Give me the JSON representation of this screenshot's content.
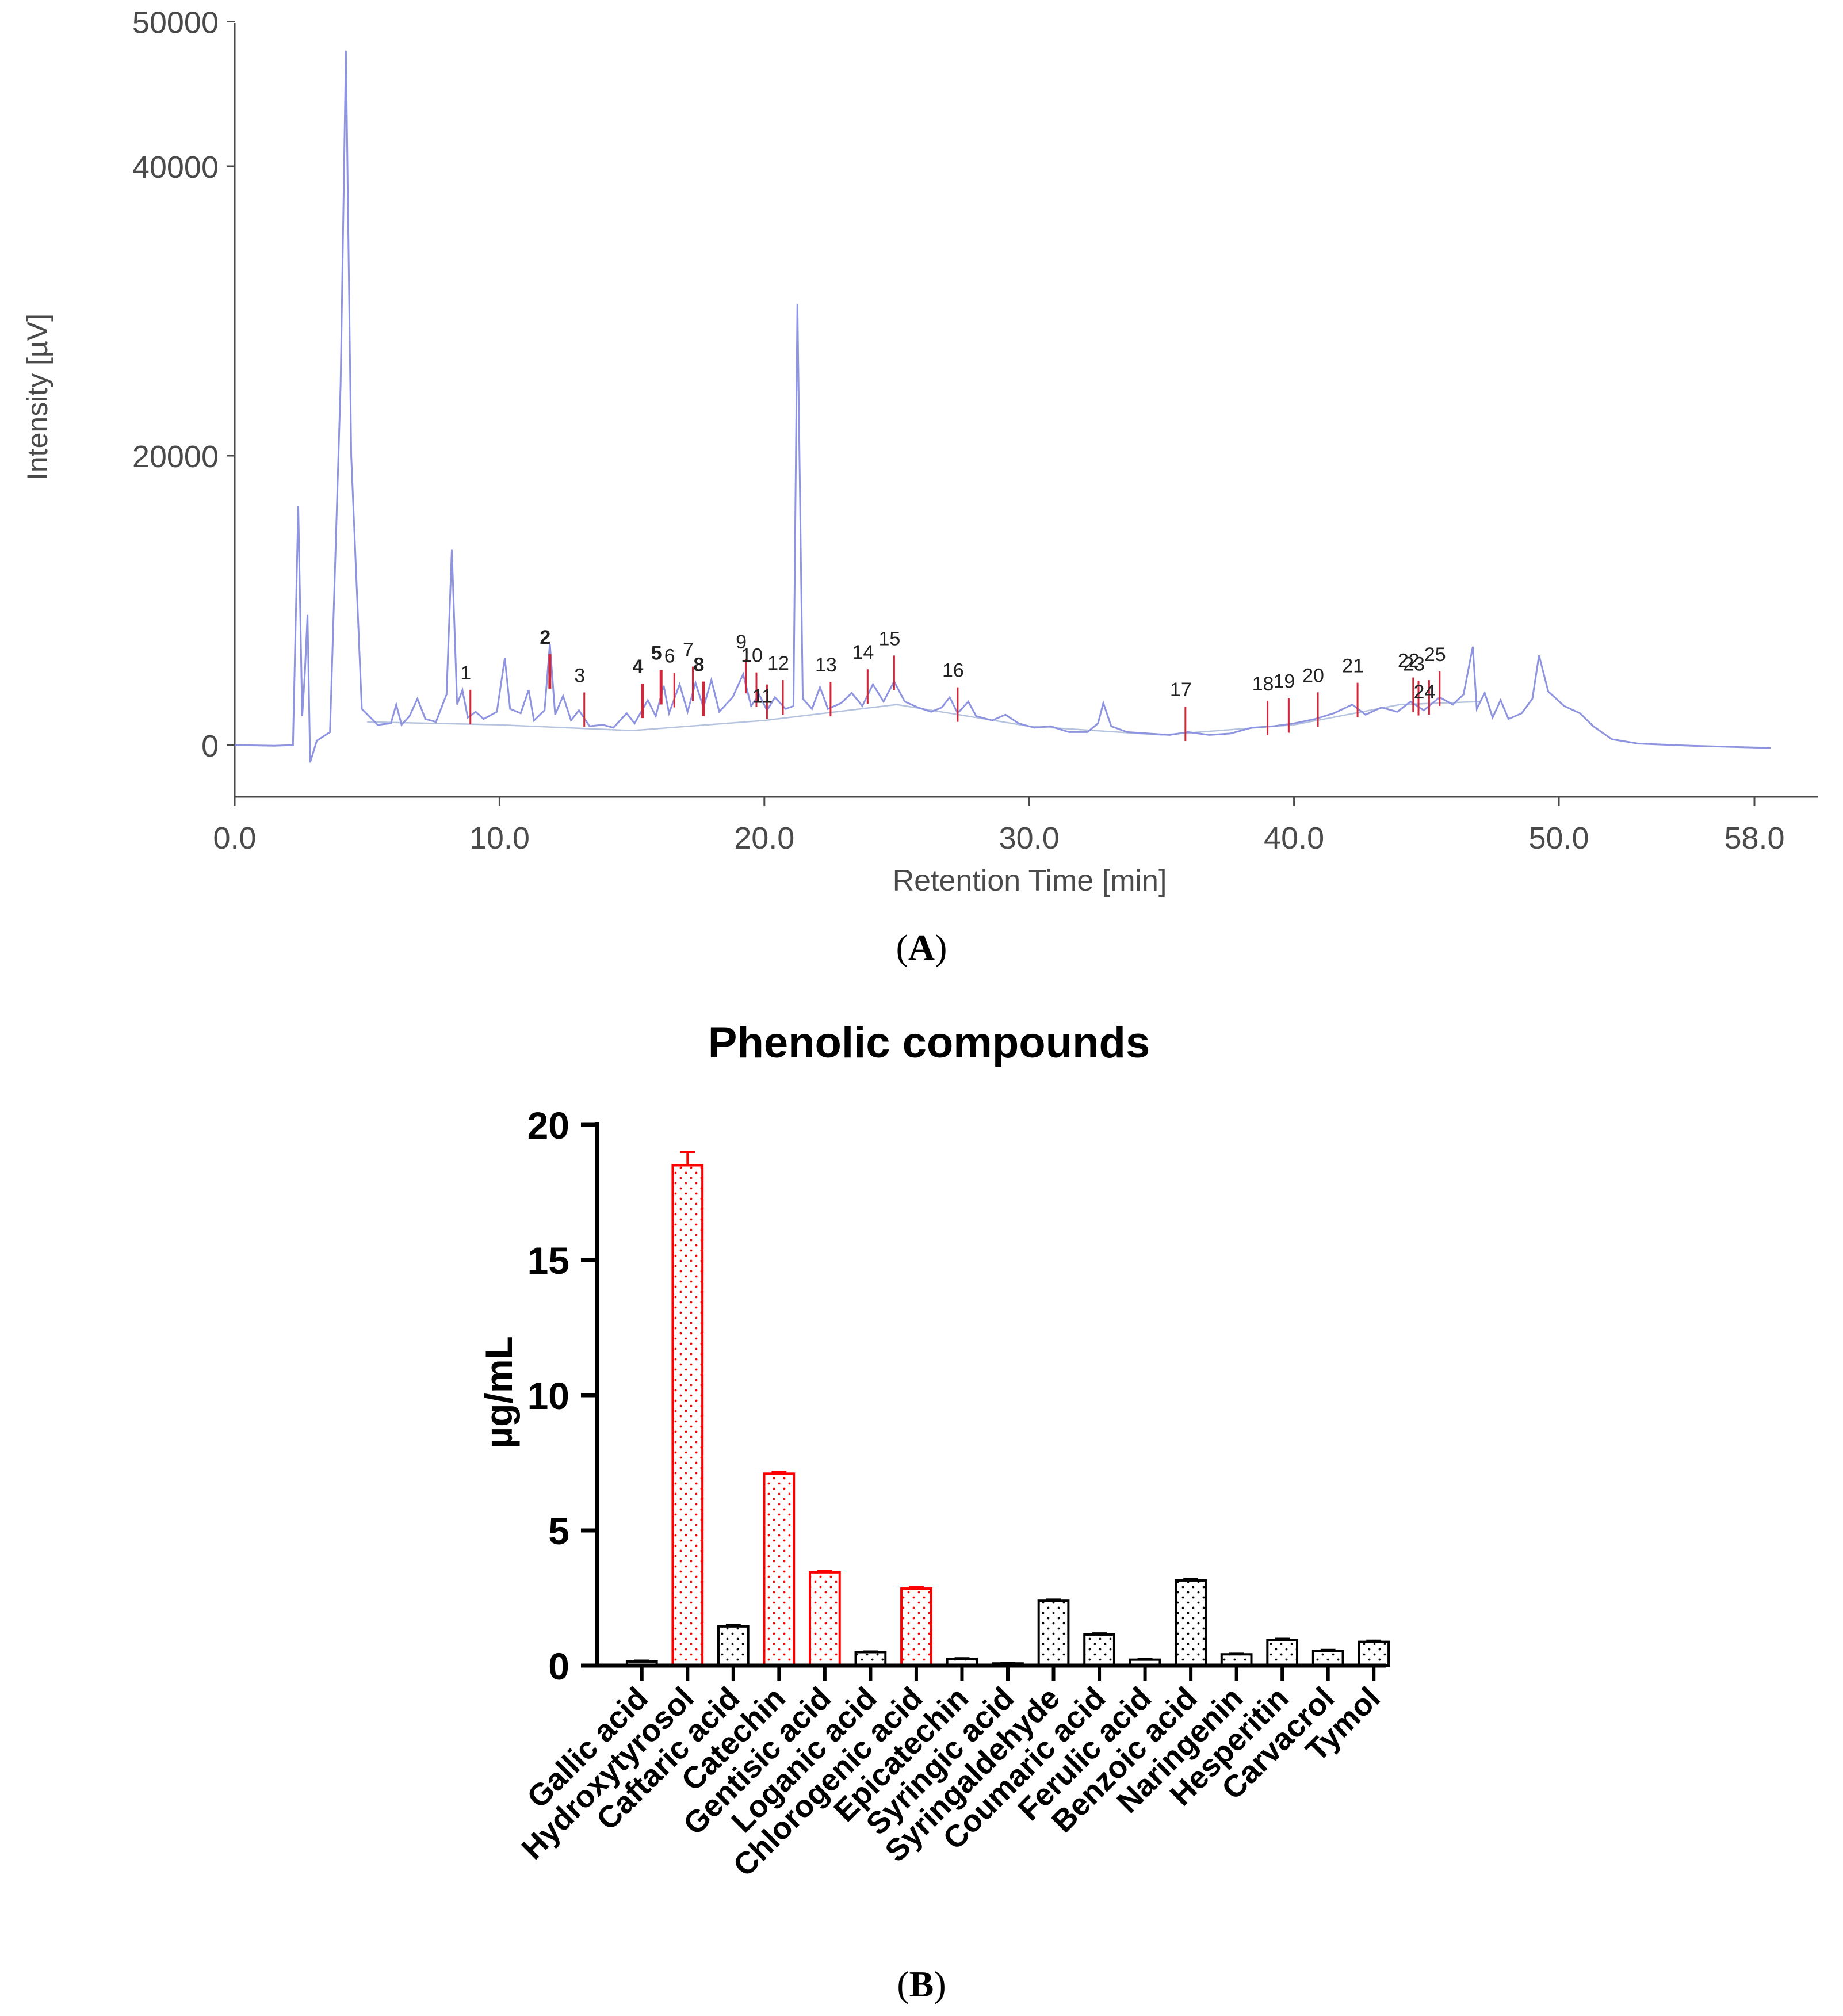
{
  "panel_a": {
    "label_open": "(",
    "label_letter": "A",
    "label_close": ")"
  },
  "panel_b": {
    "label_open": "(",
    "label_letter": "B",
    "label_close": ")"
  },
  "colors": {
    "trace": "#8f94e0",
    "baseline": "#b5c3df",
    "peak_marker": "#d0283a",
    "axis": "#4a4a4a",
    "bar_highlight": "#ff0000",
    "bar_normal": "#000000"
  },
  "chart_data": [
    {
      "type": "line",
      "title": "",
      "xlabel": "Retention Time [min]",
      "ylabel": "Intensity [µV]",
      "xlim": [
        0,
        58
      ],
      "ylim": [
        -3500,
        50000
      ],
      "x_ticks": [
        0,
        10,
        20,
        30,
        40,
        50,
        58
      ],
      "x_tick_labels": [
        "0.0",
        "10.0",
        "20.0",
        "30.0",
        "40.0",
        "50.0",
        "58.0"
      ],
      "y_ticks": [
        0,
        20000,
        40000,
        50000
      ],
      "y_tick_labels": [
        "0",
        "20000",
        "40000",
        "50000"
      ],
      "trace": [
        [
          0,
          0
        ],
        [
          1.5,
          -50
        ],
        [
          2.2,
          0
        ],
        [
          2.4,
          16500
        ],
        [
          2.55,
          2000
        ],
        [
          2.65,
          5000
        ],
        [
          2.75,
          9000
        ],
        [
          2.85,
          -1200
        ],
        [
          3.1,
          300
        ],
        [
          3.6,
          900
        ],
        [
          4.0,
          25000
        ],
        [
          4.2,
          48000
        ],
        [
          4.4,
          20000
        ],
        [
          4.8,
          2500
        ],
        [
          5.4,
          1400
        ],
        [
          5.9,
          1500
        ],
        [
          6.1,
          2800
        ],
        [
          6.3,
          1400
        ],
        [
          6.6,
          2000
        ],
        [
          6.9,
          3200
        ],
        [
          7.2,
          1800
        ],
        [
          7.6,
          1600
        ],
        [
          8.0,
          3500
        ],
        [
          8.2,
          13500
        ],
        [
          8.4,
          2800
        ],
        [
          8.6,
          3800
        ],
        [
          8.8,
          1900
        ],
        [
          9.1,
          2300
        ],
        [
          9.4,
          1800
        ],
        [
          9.9,
          2300
        ],
        [
          10.2,
          6000
        ],
        [
          10.4,
          2500
        ],
        [
          10.8,
          2200
        ],
        [
          11.1,
          3800
        ],
        [
          11.3,
          1700
        ],
        [
          11.7,
          2400
        ],
        [
          11.9,
          7000
        ],
        [
          12.1,
          2100
        ],
        [
          12.4,
          3400
        ],
        [
          12.7,
          1700
        ],
        [
          13.0,
          2400
        ],
        [
          13.4,
          1300
        ],
        [
          13.9,
          1400
        ],
        [
          14.3,
          1200
        ],
        [
          14.8,
          2200
        ],
        [
          15.1,
          1500
        ],
        [
          15.6,
          3100
        ],
        [
          15.9,
          2000
        ],
        [
          16.2,
          4100
        ],
        [
          16.4,
          2200
        ],
        [
          16.8,
          4200
        ],
        [
          17.1,
          2300
        ],
        [
          17.4,
          4300
        ],
        [
          17.7,
          2600
        ],
        [
          18.0,
          4500
        ],
        [
          18.3,
          2300
        ],
        [
          18.8,
          3300
        ],
        [
          19.2,
          4900
        ],
        [
          19.5,
          2700
        ],
        [
          19.8,
          3500
        ],
        [
          20.1,
          2400
        ],
        [
          20.4,
          3300
        ],
        [
          20.8,
          2500
        ],
        [
          21.1,
          2700
        ],
        [
          21.25,
          30500
        ],
        [
          21.45,
          3200
        ],
        [
          21.8,
          2500
        ],
        [
          22.1,
          4000
        ],
        [
          22.4,
          2500
        ],
        [
          22.9,
          2900
        ],
        [
          23.3,
          3600
        ],
        [
          23.7,
          2700
        ],
        [
          24.1,
          4200
        ],
        [
          24.5,
          3000
        ],
        [
          24.9,
          4400
        ],
        [
          25.3,
          3000
        ],
        [
          25.8,
          2600
        ],
        [
          26.3,
          2300
        ],
        [
          26.7,
          2600
        ],
        [
          27.0,
          3300
        ],
        [
          27.3,
          2200
        ],
        [
          27.7,
          3000
        ],
        [
          28.0,
          2000
        ],
        [
          28.6,
          1700
        ],
        [
          29.1,
          2100
        ],
        [
          29.6,
          1500
        ],
        [
          30.2,
          1200
        ],
        [
          30.8,
          1300
        ],
        [
          31.5,
          900
        ],
        [
          32.2,
          900
        ],
        [
          32.6,
          1500
        ],
        [
          32.8,
          2900
        ],
        [
          33.1,
          1300
        ],
        [
          33.7,
          900
        ],
        [
          34.5,
          800
        ],
        [
          35.3,
          700
        ],
        [
          36.0,
          900
        ],
        [
          36.8,
          700
        ],
        [
          37.6,
          800
        ],
        [
          38.4,
          1200
        ],
        [
          39.2,
          1300
        ],
        [
          40.0,
          1500
        ],
        [
          40.8,
          1800
        ],
        [
          41.5,
          2200
        ],
        [
          42.2,
          2800
        ],
        [
          42.7,
          2100
        ],
        [
          43.3,
          2600
        ],
        [
          43.9,
          2300
        ],
        [
          44.4,
          3000
        ],
        [
          44.9,
          2400
        ],
        [
          45.5,
          3300
        ],
        [
          46.0,
          2800
        ],
        [
          46.4,
          3500
        ],
        [
          46.75,
          6800
        ],
        [
          46.9,
          2500
        ],
        [
          47.2,
          3600
        ],
        [
          47.5,
          1900
        ],
        [
          47.8,
          3100
        ],
        [
          48.1,
          1800
        ],
        [
          48.6,
          2200
        ],
        [
          49.0,
          3200
        ],
        [
          49.25,
          6200
        ],
        [
          49.6,
          3700
        ],
        [
          50.2,
          2700
        ],
        [
          50.8,
          2200
        ],
        [
          51.3,
          1300
        ],
        [
          52.0,
          400
        ],
        [
          53.0,
          100
        ],
        [
          55.0,
          -50
        ],
        [
          58.0,
          -200
        ]
      ],
      "baseline": [
        [
          5.0,
          1600
        ],
        [
          10.0,
          1400
        ],
        [
          15.0,
          1000
        ],
        [
          20.0,
          1700
        ],
        [
          25.0,
          2800
        ],
        [
          30.0,
          1300
        ],
        [
          35.0,
          700
        ],
        [
          40.0,
          1400
        ],
        [
          44.0,
          2800
        ],
        [
          47.0,
          3000
        ]
      ],
      "peaks": [
        {
          "label": "1",
          "x": 8.9,
          "bold": false
        },
        {
          "label": "2",
          "x": 11.9,
          "bold": true
        },
        {
          "label": "3",
          "x": 13.2,
          "bold": false
        },
        {
          "label": "4",
          "x": 15.4,
          "bold": true
        },
        {
          "label": "5",
          "x": 16.1,
          "bold": true
        },
        {
          "label": "6",
          "x": 16.6,
          "bold": false
        },
        {
          "label": "7",
          "x": 17.3,
          "bold": false
        },
        {
          "label": "8",
          "x": 17.7,
          "bold": true
        },
        {
          "label": "9",
          "x": 19.3,
          "bold": false
        },
        {
          "label": "10",
          "x": 19.7,
          "bold": false
        },
        {
          "label": "11",
          "x": 20.1,
          "bold": false
        },
        {
          "label": "12",
          "x": 20.7,
          "bold": false
        },
        {
          "label": "13",
          "x": 22.5,
          "bold": false
        },
        {
          "label": "14",
          "x": 23.9,
          "bold": false
        },
        {
          "label": "15",
          "x": 24.9,
          "bold": false
        },
        {
          "label": "16",
          "x": 27.3,
          "bold": false
        },
        {
          "label": "17",
          "x": 35.9,
          "bold": false
        },
        {
          "label": "18",
          "x": 39.0,
          "bold": false
        },
        {
          "label": "19",
          "x": 39.8,
          "bold": false
        },
        {
          "label": "20",
          "x": 40.9,
          "bold": false
        },
        {
          "label": "21",
          "x": 42.4,
          "bold": false
        },
        {
          "label": "22",
          "x": 44.5,
          "bold": false
        },
        {
          "label": "23",
          "x": 44.7,
          "bold": false
        },
        {
          "label": "24",
          "x": 45.1,
          "bold": false
        },
        {
          "label": "25",
          "x": 45.5,
          "bold": false
        }
      ]
    },
    {
      "type": "bar",
      "title": "Phenolic compounds",
      "xlabel": "",
      "ylabel": "µg/mL",
      "ylim": [
        0,
        20
      ],
      "y_ticks": [
        0,
        5,
        10,
        15,
        20
      ],
      "categories": [
        "Gallic acid",
        "Hydroxytyrosol",
        "Caftaric acid",
        "Catechin",
        "Gentisic acid",
        "Loganic acid",
        "Chlorogenic acid",
        "Epicatechin",
        "Syringic acid",
        "Syringaldehyde",
        "Coumaric acid",
        "Ferulic acid",
        "Benzoic acid",
        "Naringenin",
        "Hesperitin",
        "Carvacrol",
        "Tymol"
      ],
      "values": [
        0.15,
        18.5,
        1.45,
        7.1,
        3.45,
        0.5,
        2.85,
        0.25,
        0.08,
        2.4,
        1.15,
        0.22,
        3.15,
        0.42,
        0.95,
        0.55,
        0.88
      ],
      "errors": [
        0.03,
        0.5,
        0.05,
        0.06,
        0.05,
        0.02,
        0.05,
        0.02,
        0.01,
        0.04,
        0.04,
        0.02,
        0.05,
        0.02,
        0.04,
        0.03,
        0.04
      ],
      "highlighted": [
        false,
        true,
        false,
        true,
        true,
        false,
        true,
        false,
        false,
        false,
        false,
        false,
        false,
        false,
        false,
        false,
        false
      ]
    }
  ]
}
